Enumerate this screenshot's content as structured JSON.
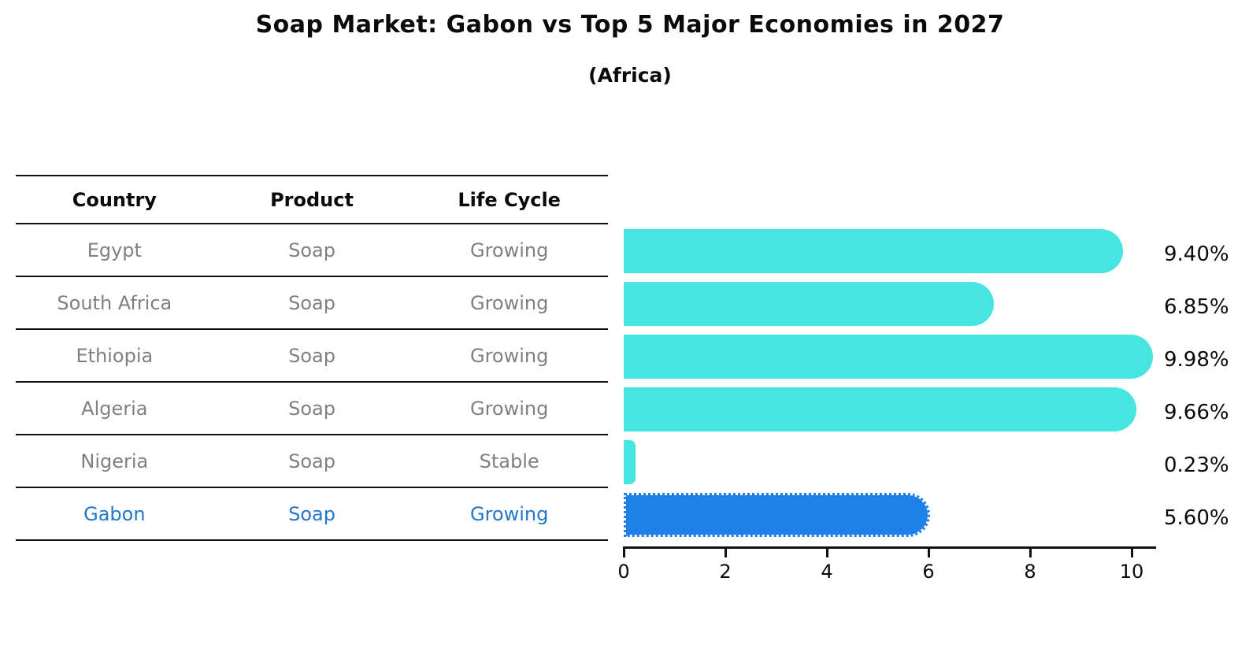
{
  "title": "Soap Market: Gabon vs Top 5 Major Economies in 2027",
  "subtitle": "(Africa)",
  "table": {
    "headers": [
      "Country",
      "Product",
      "Life Cycle"
    ],
    "rows": [
      {
        "country": "Egypt",
        "product": "Soap",
        "life_cycle": "Growing",
        "highlight": false
      },
      {
        "country": "South Africa",
        "product": "Soap",
        "life_cycle": "Growing",
        "highlight": false
      },
      {
        "country": "Ethiopia",
        "product": "Soap",
        "life_cycle": "Growing",
        "highlight": false
      },
      {
        "country": "Algeria",
        "product": "Soap",
        "life_cycle": "Growing",
        "highlight": false
      },
      {
        "country": "Nigeria",
        "product": "Soap",
        "life_cycle": "Stable",
        "highlight": false
      },
      {
        "country": "Gabon",
        "product": "Soap",
        "life_cycle": "Growing",
        "highlight": true
      }
    ]
  },
  "chart_data": {
    "type": "bar",
    "orientation": "horizontal",
    "title": "Soap Market: Gabon vs Top 5 Major Economies in 2027",
    "subtitle": "(Africa)",
    "categories": [
      "Egypt",
      "South Africa",
      "Ethiopia",
      "Algeria",
      "Nigeria",
      "Gabon"
    ],
    "values": [
      9.4,
      6.85,
      9.98,
      9.66,
      0.23,
      5.6
    ],
    "value_labels": [
      "9.40%",
      "6.85%",
      "9.98%",
      "9.66%",
      "0.23%",
      "5.60%"
    ],
    "xlabel": "",
    "ylabel": "",
    "xlim": [
      0,
      10.5
    ],
    "xticks": [
      0,
      2,
      4,
      6,
      8,
      10
    ],
    "grid": false,
    "legend": false,
    "bar_color": "#46e5e0",
    "highlight_color": "#2080ea",
    "highlight_index": 5
  },
  "colors": {
    "body_text": "#808080",
    "highlight_text": "#2277cc",
    "axis": "#111111"
  }
}
